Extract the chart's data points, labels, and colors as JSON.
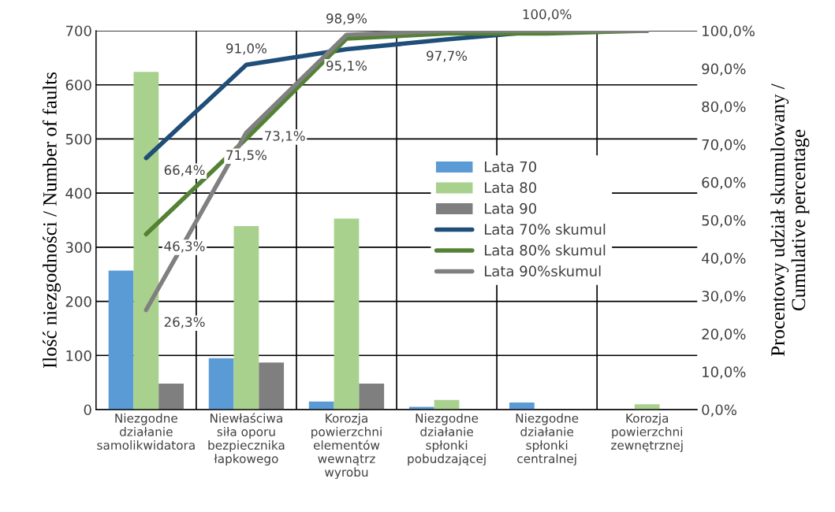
{
  "chart_data": {
    "type": "bar",
    "categories": [
      "Niezgodne\ndziałanie\nsamolikwidatora",
      "Niewłaściwa\nsiła oporu\nbezpiecznika\nłapkowego",
      "Korozja\npowierzchni\nelementów\nwewnątrz\nwyrobu",
      "Niezgodne\ndziałanie\nspłonki\npobudzającej",
      "Niezgodne\ndziałanie\nspłonki\ncentralnej",
      "Korozja\npowierzchni\nzewnętrznej"
    ],
    "series": [
      {
        "name": "Lata 70",
        "color": "#5b9bd5",
        "values": [
          257,
          95,
          15,
          5,
          13,
          0
        ]
      },
      {
        "name": "Lata 80",
        "color": "#a9d18e",
        "values": [
          624,
          339,
          353,
          18,
          0,
          10
        ]
      },
      {
        "name": "Lata 90",
        "color": "#7f7f7f",
        "values": [
          48,
          87,
          48,
          null,
          0,
          0
        ]
      },
      {
        "name": "Lata 70% skumul",
        "type": "line",
        "axis": "y2",
        "color": "#1f4e79",
        "values": [
          66.4,
          91.0,
          95.1,
          97.7,
          100.0,
          100.0
        ],
        "value_labels": [
          "66,4%",
          "91,0%",
          "95,1%",
          "97,7%",
          "100,0%",
          null
        ]
      },
      {
        "name": "Lata 80% skumul",
        "type": "line",
        "axis": "y2",
        "color": "#548235",
        "values": [
          46.3,
          71.5,
          97.9,
          99.3,
          99.3,
          100.0
        ],
        "value_labels": [
          "46,3%",
          "71,5%",
          null,
          null,
          null,
          null
        ]
      },
      {
        "name": "Lata 90%skumul",
        "type": "line",
        "axis": "y2",
        "color": "#808080",
        "values": [
          26.3,
          73.1,
          98.9,
          100.0,
          100.0,
          100.0
        ],
        "value_labels": [
          "26,3%",
          "73,1%",
          "98,9%",
          null,
          null,
          null
        ]
      }
    ],
    "ylabel": "Ilość niezgodności / Number of faults",
    "y2label": "Procentowy udział skumulowany /\nCumulative percentage",
    "ylim": [
      0,
      700
    ],
    "yticks": [
      0,
      100,
      200,
      300,
      400,
      500,
      600,
      700
    ],
    "y2lim": [
      0,
      100
    ],
    "y2ticks": [
      {
        "value": 0,
        "label": "0,0%"
      },
      {
        "value": 10,
        "label": "10,0%"
      },
      {
        "value": 20,
        "label": "20,0%"
      },
      {
        "value": 30,
        "label": "30,0%"
      },
      {
        "value": 40,
        "label": "40,0%"
      },
      {
        "value": 50,
        "label": "50,0%"
      },
      {
        "value": 60,
        "label": "60,0%"
      },
      {
        "value": 70,
        "label": "70,0%"
      },
      {
        "value": 80,
        "label": "80,0%"
      },
      {
        "value": 90,
        "label": "90,0%"
      },
      {
        "value": 100,
        "label": "100,0%"
      }
    ],
    "grid": true,
    "legend": "center right",
    "marker": "none",
    "line_style": "solid"
  }
}
